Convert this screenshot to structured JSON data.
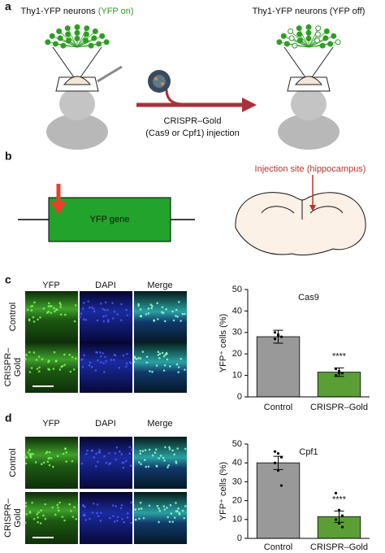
{
  "panel_a": {
    "label": "a",
    "left_title": "Thy1-YFP neurons ",
    "left_title_highlight": "(YFP on)",
    "right_title": "Thy1-YFP neurons (YFP off)",
    "injection": [
      "CRISPR–Gold",
      "(Cas9 or Cpf1) injection"
    ]
  },
  "panel_b": {
    "label": "b",
    "gene": "YFP gene",
    "site": "Injection site (hippocampus)"
  },
  "panel_c": {
    "label": "c",
    "columns": [
      "YFP",
      "DAPI",
      "Merge"
    ],
    "rows": [
      [
        "Control"
      ],
      [
        "CRISPR–",
        "Gold"
      ]
    ]
  },
  "panel_d": {
    "label": "d",
    "columns": [
      "YFP",
      "DAPI",
      "Merge"
    ],
    "rows": [
      [
        "Control"
      ],
      [
        "CRISPR–",
        "Gold"
      ]
    ]
  },
  "chart_data": [
    {
      "type": "bar",
      "title": "Cas9",
      "y_label": "YFP⁺ cells (%)",
      "categories": [
        "Control",
        "CRISPR–Gold"
      ],
      "values": [
        28,
        11.5
      ],
      "errors": [
        3,
        2
      ],
      "points": [
        [
          30,
          28.5,
          28,
          27,
          29
        ],
        [
          13,
          12,
          11,
          10,
          11
        ]
      ],
      "colors": [
        "#999999",
        "#5a9e35"
      ],
      "annotation": "****",
      "annotation_category": 1,
      "ylim": [
        0,
        50
      ],
      "yticks": [
        0,
        10,
        20,
        30,
        40,
        50
      ]
    },
    {
      "type": "bar",
      "title": "Cpf1",
      "y_label": "YFP⁺ cells (%)",
      "categories": [
        "Control",
        "CRISPR–Gold"
      ],
      "values": [
        40,
        11.5
      ],
      "errors": [
        3.5,
        3
      ],
      "points": [
        [
          46,
          45,
          43,
          40,
          36,
          28
        ],
        [
          24,
          15,
          12,
          10,
          8,
          6
        ]
      ],
      "colors": [
        "#999999",
        "#5a9e35"
      ],
      "annotation": "****",
      "annotation_category": 1,
      "ylim": [
        0,
        50
      ],
      "yticks": [
        0,
        10,
        20,
        30,
        40,
        50
      ]
    }
  ]
}
